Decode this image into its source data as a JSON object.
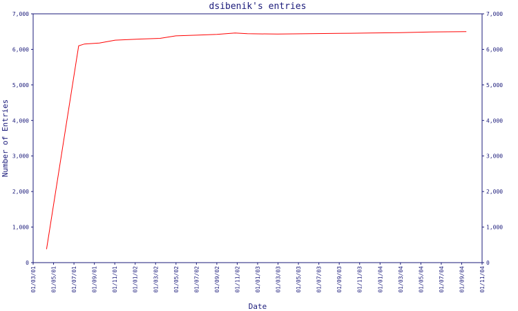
{
  "chart_data": {
    "type": "line",
    "title": "dsibenik's entries",
    "xlabel": "Date",
    "ylabel": "Number of Entries",
    "ylim": [
      0,
      7000
    ],
    "y_ticks": [
      "0",
      "1,000",
      "2,000",
      "3,000",
      "4,000",
      "5,000",
      "6,000",
      "7,000"
    ],
    "x_ticks": [
      "01/03/01",
      "01/05/01",
      "01/07/01",
      "01/09/01",
      "01/11/01",
      "01/01/02",
      "01/03/02",
      "01/05/02",
      "01/07/02",
      "01/09/02",
      "01/11/02",
      "01/01/03",
      "01/03/03",
      "01/05/03",
      "01/07/03",
      "01/09/03",
      "01/11/03",
      "01/01/04",
      "01/03/04",
      "01/05/04",
      "01/07/04",
      "01/09/04",
      "01/11/04"
    ],
    "series": [
      {
        "color": "#ff0000",
        "points": [
          {
            "x": "2001-04-10",
            "y": 380
          },
          {
            "x": "2001-07-15",
            "y": 6100
          },
          {
            "x": "2001-08-01",
            "y": 6150
          },
          {
            "x": "2001-09-15",
            "y": 6180
          },
          {
            "x": "2001-11-01",
            "y": 6260
          },
          {
            "x": "2002-01-15",
            "y": 6290
          },
          {
            "x": "2002-03-15",
            "y": 6310
          },
          {
            "x": "2002-05-01",
            "y": 6380
          },
          {
            "x": "2002-07-01",
            "y": 6400
          },
          {
            "x": "2002-09-01",
            "y": 6420
          },
          {
            "x": "2002-10-25",
            "y": 6460
          },
          {
            "x": "2002-12-01",
            "y": 6440
          },
          {
            "x": "2003-03-01",
            "y": 6430
          },
          {
            "x": "2003-06-01",
            "y": 6440
          },
          {
            "x": "2003-09-01",
            "y": 6450
          },
          {
            "x": "2003-12-01",
            "y": 6460
          },
          {
            "x": "2004-03-01",
            "y": 6470
          },
          {
            "x": "2004-06-01",
            "y": 6490
          },
          {
            "x": "2004-09-15",
            "y": 6500
          }
        ]
      }
    ]
  }
}
